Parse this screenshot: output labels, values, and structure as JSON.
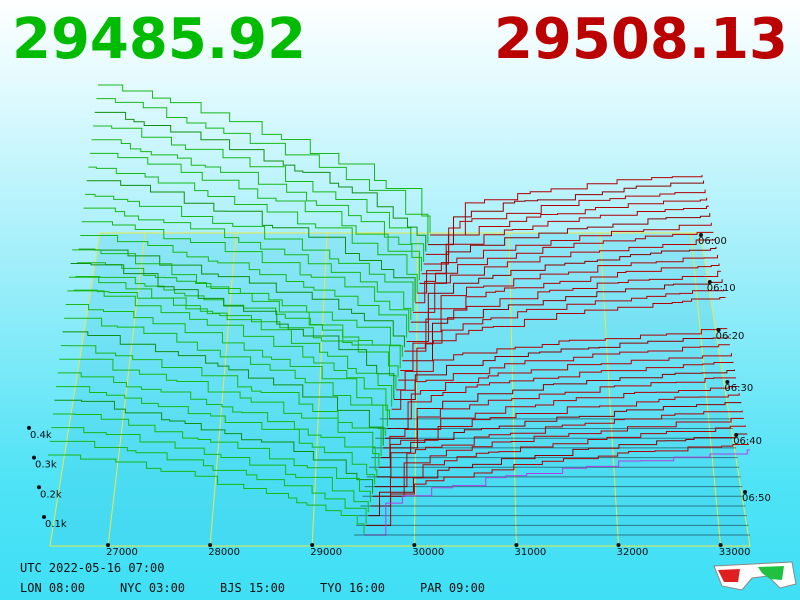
{
  "header": {
    "bid": "29485.92",
    "ask": "29508.13"
  },
  "price_axis": {
    "labels": [
      "27000",
      "28000",
      "29000",
      "30000",
      "31000",
      "32000",
      "33000"
    ]
  },
  "volume_axis": {
    "labels": [
      "0.1k",
      "0.2k",
      "0.3k",
      "0.4k"
    ]
  },
  "time_axis": {
    "labels": [
      "06:00",
      "06:10",
      "06:20",
      "06:30",
      "06:40",
      "06:50"
    ]
  },
  "footer": {
    "utc": "UTC 2022-05-16 07:00",
    "cities": [
      "LON 08:00",
      "NYC 03:00",
      "BJS 15:00",
      "TYO 16:00",
      "PAR 09:00"
    ]
  }
}
